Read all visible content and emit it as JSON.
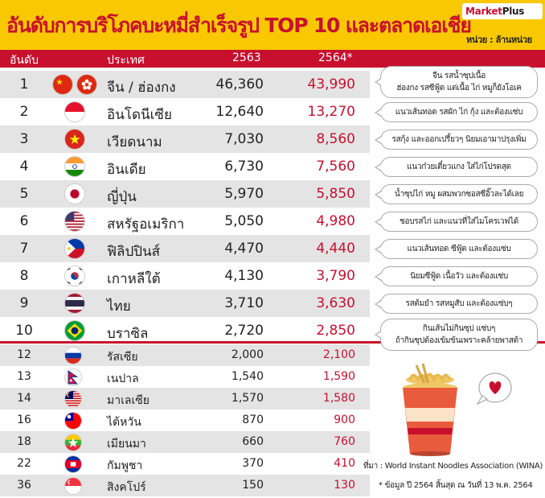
{
  "header": {
    "title": "อันดับการบริโภคบะหมี่สำเร็จรูป TOP 10 และตลาดเอเชีย",
    "brand_market": "Market",
    "brand_plus": "Plus",
    "unit": "หน่วย : ล้านหน่วย",
    "background_color": "#f9c800",
    "title_color": "#c8102e"
  },
  "columns": {
    "rank": "อันดับ",
    "country": "ประเทศ",
    "y2563": "2563",
    "y2564": "2564*"
  },
  "chart_data": {
    "type": "table",
    "title": "อันดับการบริโภคบะหมี่สำเร็จรูป TOP 10 และตลาดเอเชีย",
    "unit": "หน่วย : ล้านหน่วย",
    "columns": [
      "อันดับ",
      "ประเทศ",
      "2563",
      "2564*"
    ],
    "top10": [
      {
        "rank": "1",
        "country": "จีน / ฮ่องกง",
        "y2563": "46,360",
        "y2564": "43,990",
        "flags": [
          "china-flag-icon",
          "hong-kong-flag-icon"
        ],
        "note": [
          "จีน รสน้ำซุปเนื้อ",
          "ฮ่องกง รสซีฟู้ด แต่เนื้อ ไก่ หมูก็ยังโอเค"
        ]
      },
      {
        "rank": "2",
        "country": "อินโดนีเซีย",
        "y2563": "12,640",
        "y2564": "13,270",
        "flags": [
          "indonesia-flag-icon"
        ],
        "note": [
          "แนวเส้นทอด รสผัก ไก่ กุ้ง และต้องแซ่บ"
        ]
      },
      {
        "rank": "3",
        "country": "เวียดนาม",
        "y2563": "7,030",
        "y2564": "8,560",
        "flags": [
          "vietnam-flag-icon"
        ],
        "note": [
          "รสกุ้ง และออกเปรี้ยวๆ นิยมเอามาปรุงเพิ่ม"
        ]
      },
      {
        "rank": "4",
        "country": "อินเดีย",
        "y2563": "6,730",
        "y2564": "7,560",
        "flags": [
          "india-flag-icon"
        ],
        "note": [
          "แนวก๋วยเตี๋ยวแกง ใส่ไก่โปรดสุด"
        ]
      },
      {
        "rank": "5",
        "country": "ญี่ปุ่น",
        "y2563": "5,970",
        "y2564": "5,850",
        "flags": [
          "japan-flag-icon"
        ],
        "note": [
          "น้ำซุปไก่ หมู ผสมพวกซอสซีอิ๊วละได้เลย"
        ]
      },
      {
        "rank": "6",
        "country": "สหรัฐอเมริกา",
        "y2563": "5,050",
        "y2564": "4,980",
        "flags": [
          "usa-flag-icon"
        ],
        "note": [
          "ชอบรสไก่ และแนวที่ใส่ไมโครเวฟได้"
        ]
      },
      {
        "rank": "7",
        "country": "ฟิลิปปินส์",
        "y2563": "4,470",
        "y2564": "4,440",
        "flags": [
          "philippines-flag-icon"
        ],
        "note": [
          "แนวเส้นทอด ซีฟู้ด และต้องแซ่บ"
        ]
      },
      {
        "rank": "8",
        "country": "เกาหลีใต้",
        "y2563": "4,130",
        "y2564": "3,790",
        "flags": [
          "south-korea-flag-icon"
        ],
        "note": [
          "นิยมซีฟู้ด เนื้อวัว และต้องแซ่บ"
        ]
      },
      {
        "rank": "9",
        "country": "ไทย",
        "y2563": "3,710",
        "y2564": "3,630",
        "flags": [
          "thailand-flag-icon"
        ],
        "note": [
          "รสต้มยำ รสหมูสับ และต้องแซ่บๆ"
        ]
      },
      {
        "rank": "10",
        "country": "บราซิล",
        "y2563": "2,720",
        "y2564": "2,850",
        "flags": [
          "brazil-flag-icon"
        ],
        "note": [
          "กินเส้นไม่กินซุป แซ่บๆ",
          "ถ้ากินซุปต้องเข้มข้นเพราะคล้ายพาสต้า"
        ]
      }
    ],
    "asia": [
      {
        "rank": "12",
        "country": "รัสเซีย",
        "y2563": "2,000",
        "y2564": "2,100",
        "flags": [
          "russia-flag-icon"
        ]
      },
      {
        "rank": "13",
        "country": "เนปาล",
        "y2563": "1,540",
        "y2564": "1,590",
        "flags": [
          "nepal-flag-icon"
        ]
      },
      {
        "rank": "14",
        "country": "มาเลเซีย",
        "y2563": "1,570",
        "y2564": "1,580",
        "flags": [
          "malaysia-flag-icon"
        ]
      },
      {
        "rank": "16",
        "country": "ไต้หวัน",
        "y2563": "870",
        "y2564": "900",
        "flags": [
          "taiwan-flag-icon"
        ]
      },
      {
        "rank": "18",
        "country": "เมียนมา",
        "y2563": "660",
        "y2564": "760",
        "flags": [
          "myanmar-flag-icon"
        ]
      },
      {
        "rank": "22",
        "country": "กัมพูชา",
        "y2563": "370",
        "y2564": "410",
        "flags": [
          "cambodia-flag-icon"
        ]
      },
      {
        "rank": "36",
        "country": "สิงคโปร์",
        "y2563": "150",
        "y2564": "130",
        "flags": [
          "singapore-flag-icon"
        ]
      }
    ]
  },
  "footer": {
    "source_label": "ที่มา :",
    "source": "World Instant Noodles Association (WINA)",
    "note": "* ข้อมูล ปี 2564 สิ้นสุด ณ วันที่ 13 พ.ค. 2564"
  },
  "decor": {
    "noodle_cup": "noodle-cup-icon",
    "heart": "heart-icon"
  },
  "colors": {
    "accent_red": "#c8102e",
    "shade_gray": "#e4e4e4",
    "yellow": "#f9c800"
  }
}
